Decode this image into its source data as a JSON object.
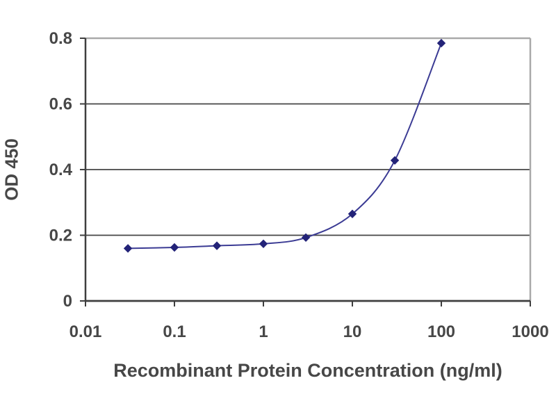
{
  "chart_data": {
    "type": "line",
    "title": "",
    "xlabel": "Recombinant Protein Concentration (ng/ml)",
    "ylabel": "OD 450",
    "x_scale": "log",
    "xlim": [
      0.01,
      1000
    ],
    "ylim": [
      0,
      0.8
    ],
    "x_tick_values": [
      0.01,
      0.1,
      1,
      10,
      100,
      1000
    ],
    "x_tick_labels": [
      "0.01",
      "0.1",
      "1",
      "10",
      "100",
      "1000"
    ],
    "y_tick_values": [
      0,
      0.2,
      0.4,
      0.6,
      0.8
    ],
    "y_tick_labels": [
      "0",
      "0.2",
      "0.4",
      "0.6",
      "0.8"
    ],
    "grid": true,
    "legend": false,
    "series": [
      {
        "x": [
          0.03,
          0.1,
          0.3,
          1,
          3,
          10,
          30,
          100
        ],
        "y": [
          0.16,
          0.163,
          0.168,
          0.174,
          0.193,
          0.265,
          0.428,
          0.785
        ],
        "marker": "diamond",
        "marker_color": "#232378",
        "line_color": "#3b3b94"
      }
    ],
    "colors": {
      "grid": "#454545",
      "frame": "#a9a9a9",
      "axis": "#3e3e3e",
      "text": "#474747",
      "background": "#ffffff"
    }
  }
}
